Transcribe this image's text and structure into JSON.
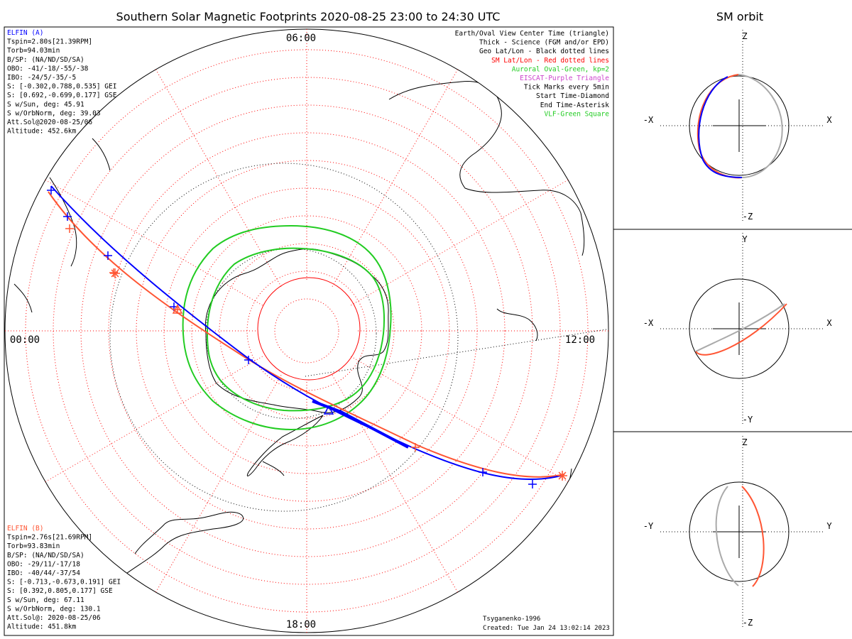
{
  "title": "Southern Solar Magnetic Footprints 2020-08-25 23:00 to 24:30 UTC",
  "orbit_title": "SM orbit",
  "legend": [
    {
      "text": "Earth/Oval View Center Time (triangle)",
      "color": "#000000"
    },
    {
      "text": "Thick - Science (FGM and/or EPD)",
      "color": "#000000"
    },
    {
      "text": "Geo Lat/Lon - Black dotted lines",
      "color": "#000000"
    },
    {
      "text": "SM Lat/Lon - Red dotted lines",
      "color": "#ff0000"
    },
    {
      "text": "Auroral Oval-Green, kp=2",
      "color": "#22cc22"
    },
    {
      "text": "EISCAT-Purple Triangle",
      "color": "#cc44cc"
    },
    {
      "text": "Tick Marks every 5min",
      "color": "#000000"
    },
    {
      "text": "Start Time-Diamond",
      "color": "#000000"
    },
    {
      "text": "End Time-Asterisk",
      "color": "#000000"
    },
    {
      "text": "VLF-Green Square",
      "color": "#22cc22"
    }
  ],
  "probe_a": {
    "name": "ELFIN (A)",
    "color": "#0000ff",
    "lines": [
      "Tspin=2.80s[21.39RPM]",
      "Torb=94.03min",
      "B/SP: (NA/ND/SD/SA)",
      "OBO: -41/-18/-55/-38",
      "IBO: -24/5/-35/-5",
      "S: [-0.302,0.788,0.535] GEI",
      "S: [0.692,-0.699,0.177] GSE",
      "S w/Sun, deg: 45.91",
      "S w/OrbNorm, deg: 39.03",
      "Att.Sol@2020-08-25/06",
      "Altitude: 452.6km"
    ]
  },
  "probe_b": {
    "name": "ELFIN (B)",
    "color": "#ff5533",
    "lines": [
      "Tspin=2.76s[21.69RPM]",
      "Torb=93.83min",
      "B/SP: (NA/ND/SD/SA)",
      "OBO: -29/11/-17/18",
      "IBO: -40/44/-37/54",
      "S: [-0.713,-0.673,0.191] GEI",
      "S: [0.392,0.805,0.177] GSE",
      "S w/Sun, deg: 67.11",
      "S w/OrbNorm, deg: 130.1",
      "Att.Sol@: 2020-08-25/06",
      "Altitude: 451.8km"
    ]
  },
  "mlt_labels": {
    "top": "06:00",
    "left": "00:00",
    "right": "12:00",
    "bottom": "18:00"
  },
  "credit": {
    "author": "Tsyganenko-1996",
    "created": "Created: Tue Jan 24 13:02:14 2023"
  },
  "orbit_panels": [
    {
      "top": "Z",
      "bottom": "-Z",
      "left": "-X",
      "right": "X"
    },
    {
      "top": "Y",
      "bottom": "-Y",
      "left": "-X",
      "right": "X"
    },
    {
      "top": "Z",
      "bottom": "-Z",
      "left": "-Y",
      "right": "Y"
    }
  ],
  "colors": {
    "probe_a": "#0000ff",
    "probe_b": "#ff5533",
    "sm_grid": "#ff0000",
    "geo_grid": "#000000",
    "oval": "#22cc22",
    "orbit_gray": "#aaaaaa"
  }
}
